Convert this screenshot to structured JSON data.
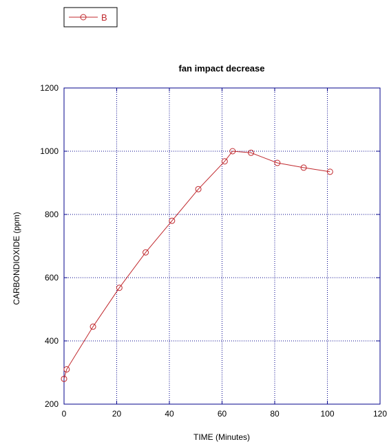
{
  "chart_data": {
    "type": "line",
    "title": "fan impact decrease",
    "xlabel": "TIME (Minutes)",
    "ylabel": "CARBONDIOXIDE (ppm)",
    "xlim": [
      0,
      120
    ],
    "ylim": [
      200,
      1200
    ],
    "xticks": [
      "0",
      "20",
      "40",
      "60",
      "80",
      "100",
      "120"
    ],
    "yticks": [
      "200",
      "400",
      "600",
      "800",
      "1000",
      "1200"
    ],
    "grid": true,
    "legend_position": "top-left",
    "series": [
      {
        "name": "B",
        "color": "#c0282d",
        "marker": "circle",
        "x": [
          0,
          1,
          11,
          21,
          31,
          41,
          51,
          61,
          64,
          71,
          81,
          91,
          101
        ],
        "y": [
          280,
          310,
          445,
          568,
          680,
          780,
          880,
          968,
          1000,
          995,
          963,
          948,
          935
        ]
      }
    ]
  }
}
